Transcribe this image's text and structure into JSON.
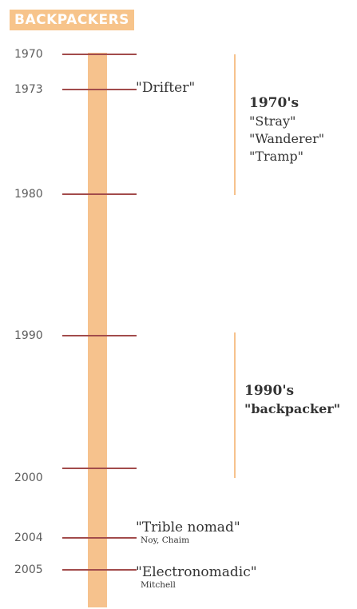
{
  "title": "BACKPACKERS",
  "colors": {
    "title_background": "#f7c48b",
    "axis_bar": "#f6c28d",
    "tick": "#a24b4b",
    "era_line": "#f6c28d",
    "text": "#333333"
  },
  "years": [
    "1970",
    "1973",
    "1980",
    "1990",
    "2000",
    "2004",
    "2005"
  ],
  "events": [
    {
      "name": "\"Drifter\"",
      "author": ""
    },
    {
      "name": "\"Trible nomad\"",
      "author": "Noy, Chaim"
    },
    {
      "name": "\"Electronomadic\"",
      "author": "Mitchell"
    }
  ],
  "eras": [
    {
      "heading": "1970's",
      "terms": [
        "\"Stray\"",
        "\"Wanderer\"",
        "\"Tramp\""
      ]
    },
    {
      "heading": "1990's",
      "terms": [
        "\"backpacker\""
      ]
    }
  ]
}
